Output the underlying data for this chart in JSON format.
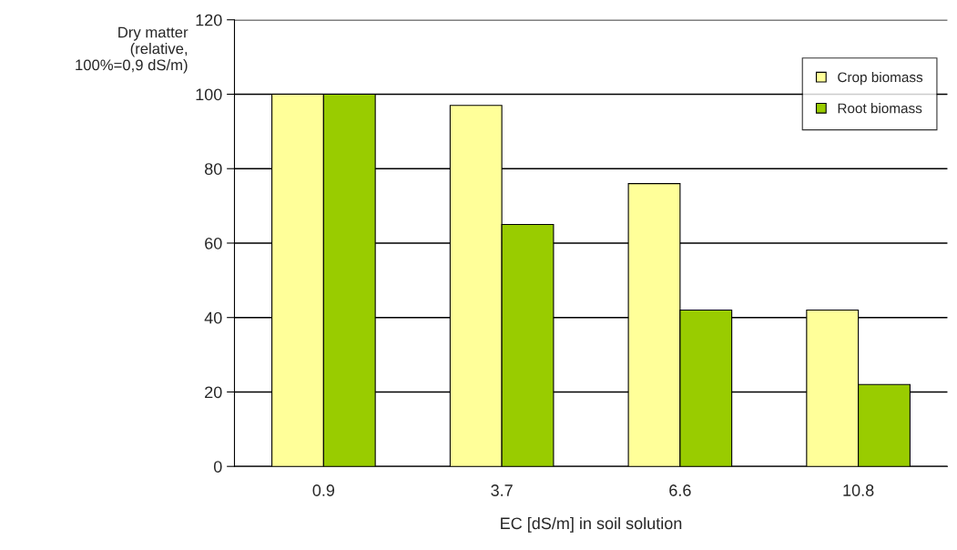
{
  "chart_data": {
    "type": "bar",
    "xlabel": "EC [dS/m] in soil solution",
    "ylabel": "Dry matter\n(relative,\n100%=0,9 dS/m)",
    "categories": [
      "0.9",
      "3.7",
      "6.6",
      "10.8"
    ],
    "series": [
      {
        "name": "Crop biomass",
        "color": "#ffff99",
        "values": [
          100,
          97,
          76,
          42
        ]
      },
      {
        "name": "Root biomass",
        "color": "#99cc00",
        "values": [
          100,
          65,
          42,
          22
        ]
      }
    ],
    "ylim": [
      0,
      120
    ],
    "yticks": [
      0,
      20,
      40,
      60,
      80,
      100,
      120
    ],
    "grid": "y",
    "legend": "top right"
  }
}
